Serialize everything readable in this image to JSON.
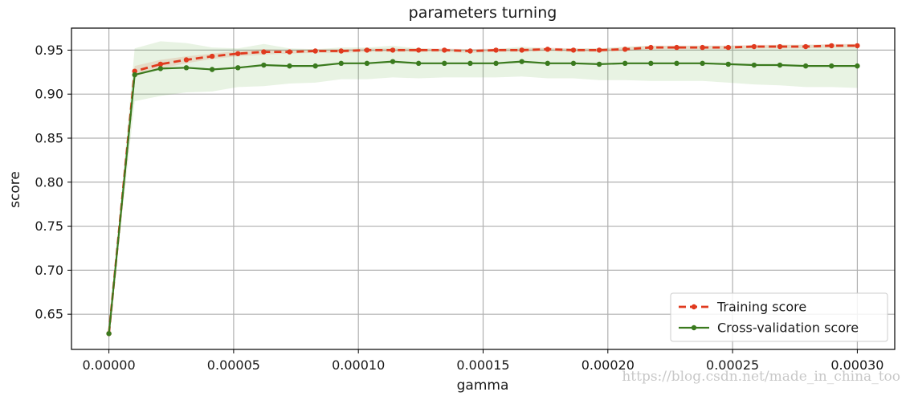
{
  "chart_data": {
    "type": "line",
    "title": "parameters turning",
    "xlabel": "gamma",
    "ylabel": "score",
    "xlim": [
      -1.5e-05,
      0.000315
    ],
    "ylim": [
      0.61,
      0.975
    ],
    "xticks": [
      0.0,
      5e-05,
      0.0001,
      0.00015,
      0.0002,
      0.00025,
      0.0003
    ],
    "xtick_labels": [
      "0.00000",
      "0.00005",
      "0.00010",
      "0.00015",
      "0.00020",
      "0.00025",
      "0.00030"
    ],
    "yticks": [
      0.65,
      0.7,
      0.75,
      0.8,
      0.85,
      0.9,
      0.95
    ],
    "ytick_labels": [
      "0.65",
      "0.70",
      "0.75",
      "0.80",
      "0.85",
      "0.90",
      "0.95"
    ],
    "grid": true,
    "legend_position": "bottom-right",
    "x": [
      0.0,
      1.034e-05,
      2.069e-05,
      3.103e-05,
      4.138e-05,
      5.172e-05,
      6.207e-05,
      7.241e-05,
      8.276e-05,
      9.31e-05,
      0.00010345,
      0.00011379,
      0.00012414,
      0.00013448,
      0.00014483,
      0.00015517,
      0.00016552,
      0.00017586,
      0.00018621,
      0.00019655,
      0.0002069,
      0.00021724,
      0.00022759,
      0.00023793,
      0.00024828,
      0.00025862,
      0.00026897,
      0.00027931,
      0.00028966,
      0.0003
    ],
    "series": [
      {
        "name": "Training score",
        "color": "#e03a1e",
        "band_color": "#e03a1e",
        "style": "dashed",
        "values": [
          0.628,
          0.926,
          0.934,
          0.939,
          0.943,
          0.946,
          0.948,
          0.948,
          0.949,
          0.949,
          0.95,
          0.95,
          0.95,
          0.95,
          0.949,
          0.95,
          0.95,
          0.951,
          0.95,
          0.95,
          0.951,
          0.953,
          0.953,
          0.953,
          0.953,
          0.954,
          0.954,
          0.954,
          0.955,
          0.955
        ],
        "std": [
          0.0,
          0.006,
          0.005,
          0.004,
          0.003,
          0.003,
          0.003,
          0.002,
          0.002,
          0.002,
          0.002,
          0.002,
          0.002,
          0.002,
          0.002,
          0.002,
          0.002,
          0.002,
          0.002,
          0.002,
          0.002,
          0.002,
          0.002,
          0.002,
          0.002,
          0.002,
          0.002,
          0.002,
          0.002,
          0.002
        ]
      },
      {
        "name": "Cross-validation score",
        "color": "#3a7a1e",
        "band_color": "#5aaa3c",
        "style": "solid",
        "values": [
          0.628,
          0.922,
          0.929,
          0.93,
          0.928,
          0.93,
          0.933,
          0.932,
          0.932,
          0.935,
          0.935,
          0.937,
          0.935,
          0.935,
          0.935,
          0.935,
          0.937,
          0.935,
          0.935,
          0.934,
          0.935,
          0.935,
          0.935,
          0.935,
          0.934,
          0.933,
          0.933,
          0.932,
          0.932,
          0.932
        ],
        "std": [
          0.0,
          0.03,
          0.031,
          0.028,
          0.025,
          0.022,
          0.024,
          0.02,
          0.019,
          0.018,
          0.018,
          0.018,
          0.017,
          0.016,
          0.016,
          0.016,
          0.017,
          0.017,
          0.017,
          0.018,
          0.019,
          0.02,
          0.02,
          0.02,
          0.021,
          0.022,
          0.023,
          0.024,
          0.024,
          0.025
        ]
      }
    ]
  },
  "watermark": "https://blog.csdn.net/made_in_china_too",
  "colors": {
    "grid": "#b0b0b0",
    "axis": "#000000"
  }
}
